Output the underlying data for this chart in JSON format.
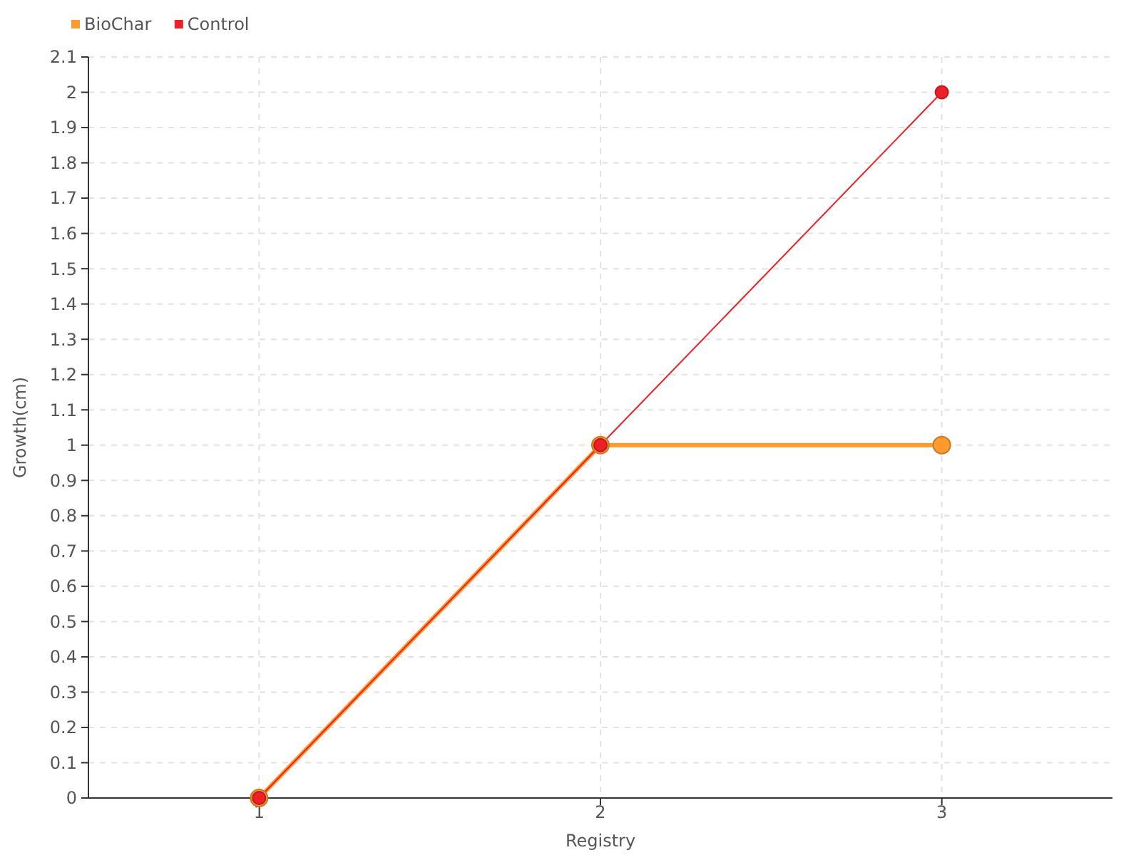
{
  "chart_data": {
    "type": "line",
    "xlabel": "Registry",
    "ylabel": "Growth(cm)",
    "x": [
      1,
      2,
      3
    ],
    "series": [
      {
        "name": "BioChar",
        "color": "#ff9a2e",
        "values": [
          0,
          1,
          1
        ]
      },
      {
        "name": "Control",
        "color": "#ee2027",
        "values": [
          0,
          1,
          2
        ]
      }
    ],
    "xlim": [
      0.5,
      3.5
    ],
    "xticks": [
      1,
      2,
      3
    ],
    "ylim": [
      0,
      2.1
    ],
    "yticks": [
      0,
      0.1,
      0.2,
      0.3,
      0.4,
      0.5,
      0.6,
      0.7,
      0.8,
      0.9,
      1,
      1.1,
      1.2,
      1.3,
      1.4,
      1.5,
      1.6,
      1.7,
      1.8,
      1.9,
      2,
      2.1
    ],
    "grid": true,
    "legend": "top left",
    "marker": "circle",
    "line_style": "solid"
  }
}
